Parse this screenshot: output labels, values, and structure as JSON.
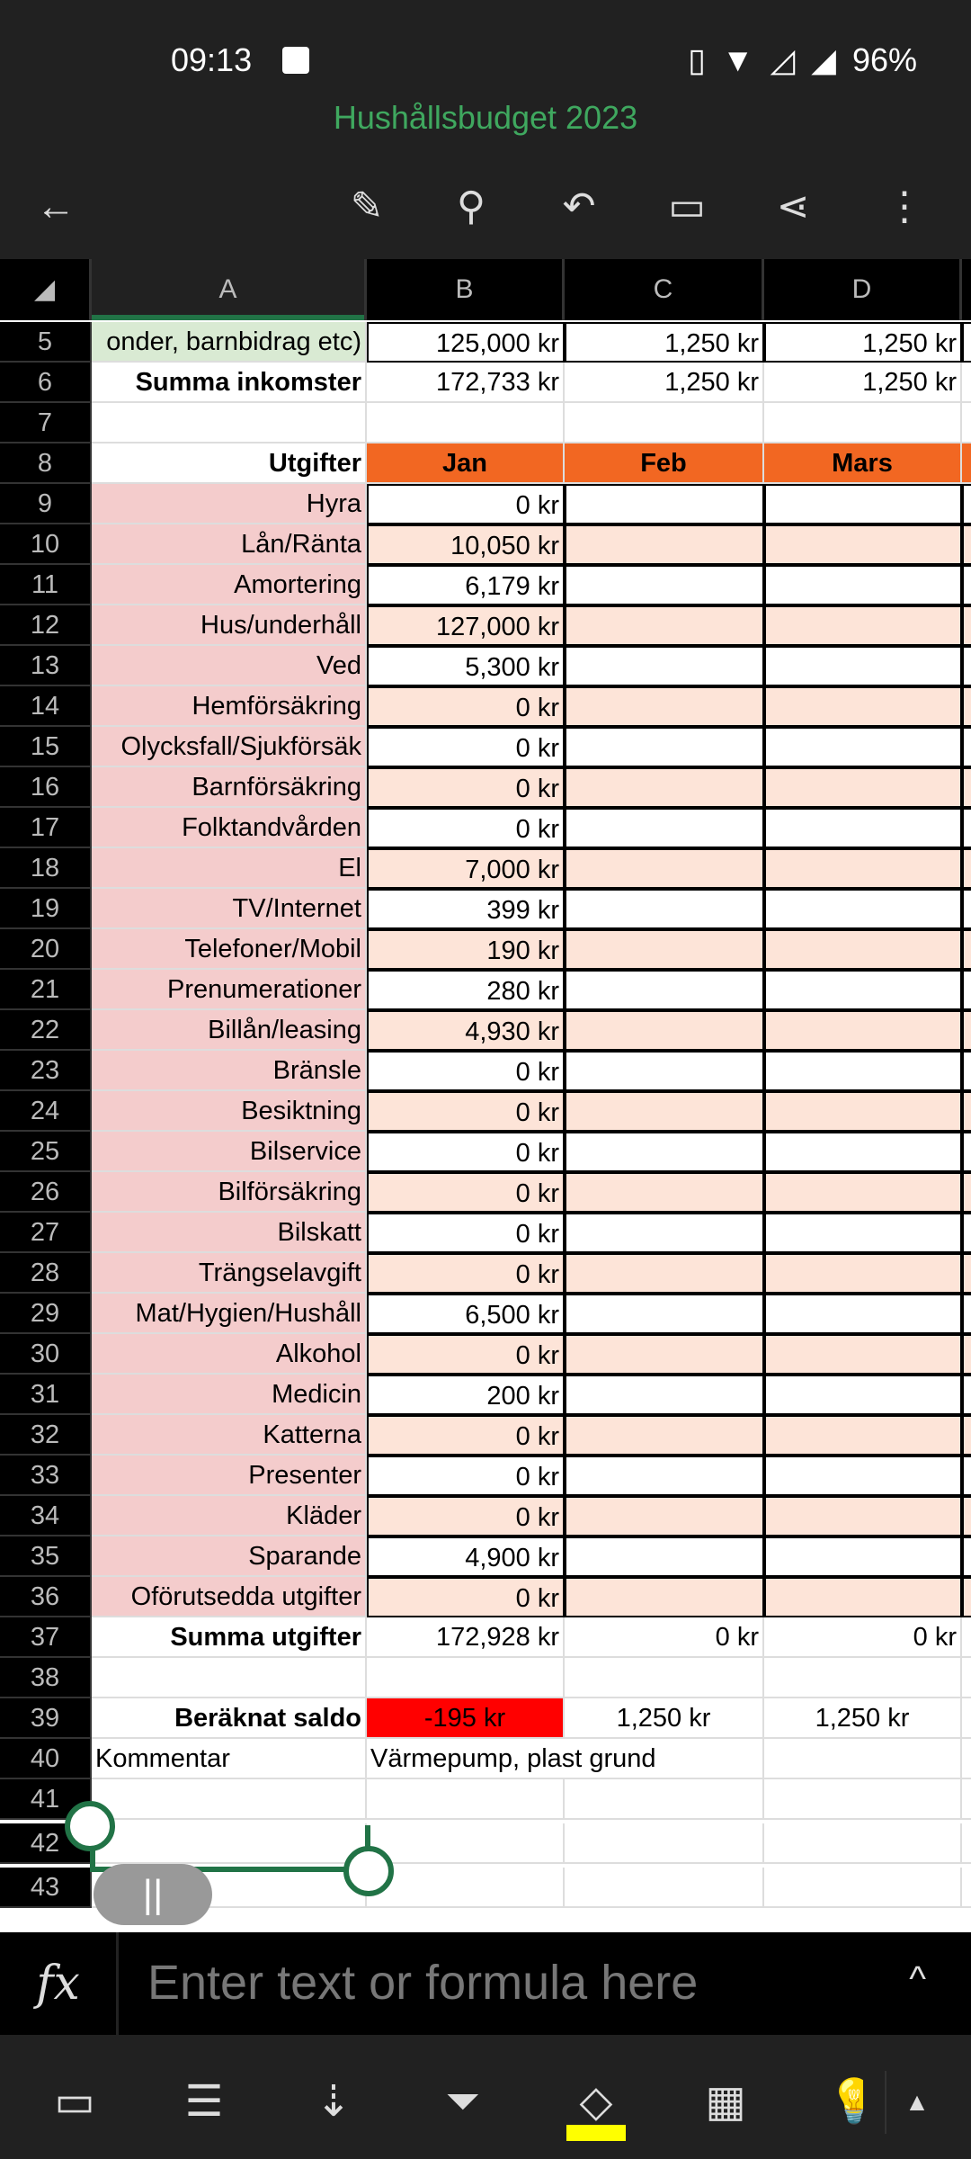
{
  "status": {
    "time": "09:13",
    "battery": "96%"
  },
  "title": "Hushållsbudget 2023",
  "toolbar": {
    "icons": [
      "back-arrow-icon",
      "draw-icon",
      "search-icon",
      "undo-icon",
      "comment-icon",
      "share-icon",
      "more-icon"
    ]
  },
  "columns": [
    "A",
    "B",
    "C",
    "D"
  ],
  "rows": [
    {
      "n": "5",
      "a": "onder, barnbidrag etc)",
      "b": "125,000 kr",
      "c": "1,250 kr",
      "d": "1,250 kr",
      "style": "income"
    },
    {
      "n": "6",
      "a": "Summa inkomster",
      "b": "172,733 kr",
      "c": "1,250 kr",
      "d": "1,250 kr",
      "style": "sum"
    },
    {
      "n": "7",
      "a": "",
      "b": "",
      "c": "",
      "d": "",
      "style": "plain"
    },
    {
      "n": "8",
      "a": "Utgifter",
      "b": "Jan",
      "c": "Feb",
      "d": "Mars",
      "style": "header"
    },
    {
      "n": "9",
      "a": "Hyra",
      "b": "0 kr",
      "style": "exp"
    },
    {
      "n": "10",
      "a": "Lån/Ränta",
      "b": "10,050 kr",
      "style": "exp"
    },
    {
      "n": "11",
      "a": "Amortering",
      "b": "6,179 kr",
      "style": "exp"
    },
    {
      "n": "12",
      "a": "Hus/underhåll",
      "b": "127,000 kr",
      "style": "exp"
    },
    {
      "n": "13",
      "a": "Ved",
      "b": "5,300 kr",
      "style": "exp"
    },
    {
      "n": "14",
      "a": "Hemförsäkring",
      "b": "0 kr",
      "style": "exp"
    },
    {
      "n": "15",
      "a": "Olycksfall/Sjukförsäk",
      "b": "0 kr",
      "style": "exp"
    },
    {
      "n": "16",
      "a": "Barnförsäkring",
      "b": "0 kr",
      "style": "exp"
    },
    {
      "n": "17",
      "a": "Folktandvården",
      "b": "0 kr",
      "style": "exp"
    },
    {
      "n": "18",
      "a": "El",
      "b": "7,000 kr",
      "style": "exp"
    },
    {
      "n": "19",
      "a": "TV/Internet",
      "b": "399 kr",
      "style": "exp"
    },
    {
      "n": "20",
      "a": "Telefoner/Mobil",
      "b": "190 kr",
      "style": "exp"
    },
    {
      "n": "21",
      "a": "Prenumerationer",
      "b": "280 kr",
      "style": "exp"
    },
    {
      "n": "22",
      "a": "Billån/leasing",
      "b": "4,930 kr",
      "style": "exp"
    },
    {
      "n": "23",
      "a": "Bränsle",
      "b": "0 kr",
      "style": "exp"
    },
    {
      "n": "24",
      "a": "Besiktning",
      "b": "0 kr",
      "style": "exp"
    },
    {
      "n": "25",
      "a": "Bilservice",
      "b": "0 kr",
      "style": "exp"
    },
    {
      "n": "26",
      "a": "Bilförsäkring",
      "b": "0 kr",
      "style": "exp"
    },
    {
      "n": "27",
      "a": "Bilskatt",
      "b": "0 kr",
      "style": "exp"
    },
    {
      "n": "28",
      "a": "Trängselavgift",
      "b": "0 kr",
      "style": "exp"
    },
    {
      "n": "29",
      "a": "Mat/Hygien/Hushåll",
      "b": "6,500 kr",
      "style": "exp"
    },
    {
      "n": "30",
      "a": "Alkohol",
      "b": "0 kr",
      "style": "exp"
    },
    {
      "n": "31",
      "a": "Medicin",
      "b": "200 kr",
      "style": "exp"
    },
    {
      "n": "32",
      "a": "Katterna",
      "b": "0 kr",
      "style": "exp"
    },
    {
      "n": "33",
      "a": "Presenter",
      "b": "0 kr",
      "style": "exp"
    },
    {
      "n": "34",
      "a": "Kläder",
      "b": "0 kr",
      "style": "exp"
    },
    {
      "n": "35",
      "a": "Sparande",
      "b": "4,900 kr",
      "style": "exp"
    },
    {
      "n": "36",
      "a": "Oförutsedda utgifter",
      "b": "0 kr",
      "style": "exp"
    },
    {
      "n": "37",
      "a": "Summa utgifter",
      "b": "172,928 kr",
      "c": "0 kr",
      "d": "0 kr",
      "style": "sum"
    },
    {
      "n": "38",
      "a": "",
      "style": "plain"
    },
    {
      "n": "39",
      "a": "Beräknat saldo",
      "b": "-195 kr",
      "c": "1,250 kr",
      "d": "1,250 kr",
      "style": "saldo"
    },
    {
      "n": "40",
      "a": "Kommentar",
      "b": "Värmepump, plast grund",
      "style": "comment"
    },
    {
      "n": "41",
      "style": "plain"
    },
    {
      "n": "42",
      "style": "plain"
    },
    {
      "n": "43",
      "style": "plain"
    }
  ],
  "formula": {
    "placeholder": "Enter text or formula here"
  },
  "colors": {
    "accent": "#217346",
    "header_orange": "#f26722",
    "pink": "#f4cccc",
    "peach": "#fde4d8",
    "negative": "#ff0000",
    "title": "#3fa85f"
  }
}
